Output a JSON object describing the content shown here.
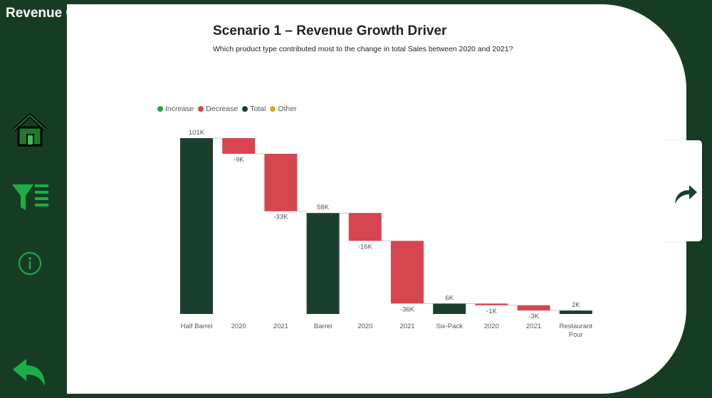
{
  "sidebar": {
    "title": "Revenue Growth Driver",
    "nav": [
      "home-icon",
      "filter-icon",
      "info-icon",
      "back-icon"
    ]
  },
  "page": {
    "title": "Scenario 1 – Revenue Growth Driver",
    "subtitle": "Which product type contributed most to the change in total Sales between 2020 and 2021?"
  },
  "colors": {
    "background": "#163d23",
    "increase": "#1aab40",
    "decrease": "#d64550",
    "total": "#1b3f2e",
    "other": "#d9b300"
  },
  "legend": [
    {
      "label": "Increase",
      "color": "#1aab40"
    },
    {
      "label": "Decrease",
      "color": "#d64550"
    },
    {
      "label": "Total",
      "color": "#1b3f2e"
    },
    {
      "label": "Other",
      "color": "#d9b300"
    }
  ],
  "chart_data": {
    "type": "waterfall",
    "title": "Scenario 1 – Revenue Growth Driver",
    "categories": [
      "Half Barrel",
      "2020",
      "2021",
      "Barrel",
      "2020",
      "2021",
      "Six-Pack",
      "2020",
      "2021",
      "Restaurant Pour"
    ],
    "values": [
      101,
      -9,
      -33,
      58,
      -16,
      -36,
      6,
      -1,
      -3,
      2
    ],
    "kinds": [
      "total",
      "decrease",
      "decrease",
      "total",
      "decrease",
      "decrease",
      "total",
      "decrease",
      "decrease",
      "total"
    ],
    "labels": [
      "101K",
      "-9K",
      "-33K",
      "58K",
      "-16K",
      "-36K",
      "6K",
      "-1K",
      "-3K",
      "2K"
    ],
    "unit": "K",
    "ylim": [
      0,
      101
    ]
  }
}
